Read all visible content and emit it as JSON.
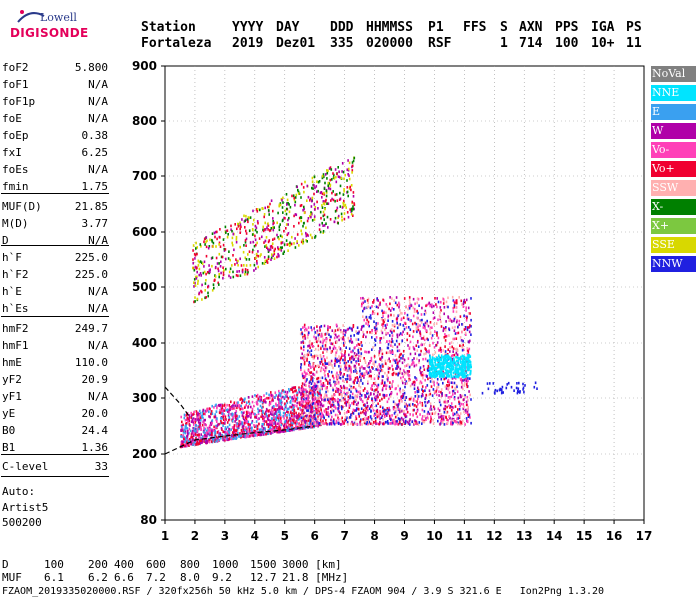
{
  "logo": {
    "line1": "Lowell",
    "line2": "DIGISONDE"
  },
  "header": {
    "keys": [
      "Station",
      "YYYY",
      "DAY",
      "DDD",
      "HHMMSS",
      "P1",
      "FFS",
      "S",
      "AXN",
      "PPS",
      "IGA",
      "PS"
    ],
    "values": [
      "Fortaleza",
      "2019",
      "Dez01",
      "335",
      "020000",
      "RSF",
      "",
      "1",
      "714",
      "100",
      "10+",
      "11"
    ]
  },
  "params": [
    {
      "name": "foF2",
      "value": "5.800"
    },
    {
      "name": "foF1",
      "value": "N/A"
    },
    {
      "name": "foF1p",
      "value": "N/A"
    },
    {
      "name": "foE",
      "value": "N/A"
    },
    {
      "name": "foEp",
      "value": "0.38"
    },
    {
      "name": "fxI",
      "value": "6.25"
    },
    {
      "name": "foEs",
      "value": "N/A"
    },
    {
      "name": "fmin",
      "value": "1.75"
    },
    {
      "name": "MUF(D)",
      "value": "21.85"
    },
    {
      "name": "M(D)",
      "value": "3.77"
    },
    {
      "name": "D",
      "value": "N/A"
    },
    {
      "name": "h`F",
      "value": "225.0"
    },
    {
      "name": "h`F2",
      "value": "225.0"
    },
    {
      "name": "h`E",
      "value": "N/A"
    },
    {
      "name": "h`Es",
      "value": "N/A"
    },
    {
      "name": "hmF2",
      "value": "249.7"
    },
    {
      "name": "hmF1",
      "value": "N/A"
    },
    {
      "name": "hmE",
      "value": "110.0"
    },
    {
      "name": "yF2",
      "value": "20.9"
    },
    {
      "name": "yF1",
      "value": "N/A"
    },
    {
      "name": "yE",
      "value": "20.0"
    },
    {
      "name": "B0",
      "value": "24.4"
    },
    {
      "name": "B1",
      "value": "1.36"
    },
    {
      "name": "C-level",
      "value": "33"
    }
  ],
  "auto": {
    "line1": "Auto:",
    "line2": "Artist5",
    "line3": "500200"
  },
  "legend": [
    {
      "label": "NoVal",
      "color": "#808080"
    },
    {
      "label": "NNE",
      "color": "#00e4ff"
    },
    {
      "label": "E",
      "color": "#3aa0f0"
    },
    {
      "label": "W",
      "color": "#b000a8"
    },
    {
      "label": "Vo-",
      "color": "#ff40b8"
    },
    {
      "label": "Vo+",
      "color": "#f00030"
    },
    {
      "label": "SSW",
      "color": "#ffb0b0"
    },
    {
      "label": "X-",
      "color": "#008000"
    },
    {
      "label": "X+",
      "color": "#7cc840"
    },
    {
      "label": "SSE",
      "color": "#d8d800"
    },
    {
      "label": "NNW",
      "color": "#2020e0"
    }
  ],
  "footer": {
    "d_label": "D",
    "d_values": [
      "100",
      "200",
      "400",
      "600",
      "800",
      "1000",
      "1500",
      "3000 [km]"
    ],
    "muf_label": "MUF",
    "muf_values": [
      "6.1",
      "6.2",
      "6.6",
      "7.2",
      "8.0",
      "9.2",
      "12.7",
      "21.8 [MHz]"
    ],
    "file_line": "FZAOM_2019335020000.RSF / 320fx256h 50 kHz 5.0 km / DPS-4 FZAOM 904 / 3.9 S 321.6 E   Ion2Png 1.3.20"
  },
  "chart_data": {
    "type": "scatter",
    "title": "",
    "xlabel": "",
    "ylabel": "",
    "xlim": [
      1,
      17
    ],
    "ylim": [
      80,
      900
    ],
    "x_ticks": [
      1,
      2,
      3,
      4,
      5,
      6,
      7,
      8,
      9,
      10,
      11,
      12,
      13,
      14,
      15,
      16,
      17
    ],
    "y_ticks": [
      80,
      200,
      300,
      400,
      500,
      600,
      700,
      800,
      900
    ],
    "grid": true,
    "legend_position": "right",
    "regions": [
      {
        "name": "F-trace o-mode",
        "x_range": [
          1.5,
          6.2
        ],
        "h_range": [
          215,
          330
        ],
        "colors": [
          "#f00030",
          "#b000a8",
          "#ff40b8",
          "#3aa0f0"
        ]
      },
      {
        "name": "F-layer spread",
        "x_range": [
          5.5,
          11.2
        ],
        "h_range": [
          250,
          480
        ],
        "colors": [
          "#f00030",
          "#ff40b8",
          "#b000a8",
          "#ffb0b0",
          "#2020e0"
        ]
      },
      {
        "name": "second hop",
        "x_range": [
          1.9,
          7.3
        ],
        "h_range": [
          470,
          740
        ],
        "colors": [
          "#d8d800",
          "#b000a8",
          "#f00030",
          "#008000"
        ]
      },
      {
        "name": "NNE cluster",
        "x_range": [
          9.8,
          11.2
        ],
        "h_range": [
          340,
          380
        ],
        "colors": [
          "#00e4ff"
        ]
      },
      {
        "name": "NNW tail",
        "x_range": [
          11.5,
          13.4
        ],
        "h_range": [
          310,
          330
        ],
        "colors": [
          "#2020e0"
        ]
      }
    ],
    "profile": {
      "lower": [
        [
          1.0,
          200
        ],
        [
          2.0,
          225
        ],
        [
          3.0,
          232
        ],
        [
          4.0,
          238
        ],
        [
          5.0,
          243
        ],
        [
          6.0,
          250
        ]
      ],
      "upper": [
        [
          1.0,
          320
        ],
        [
          1.5,
          290
        ],
        [
          1.8,
          268
        ]
      ]
    }
  }
}
